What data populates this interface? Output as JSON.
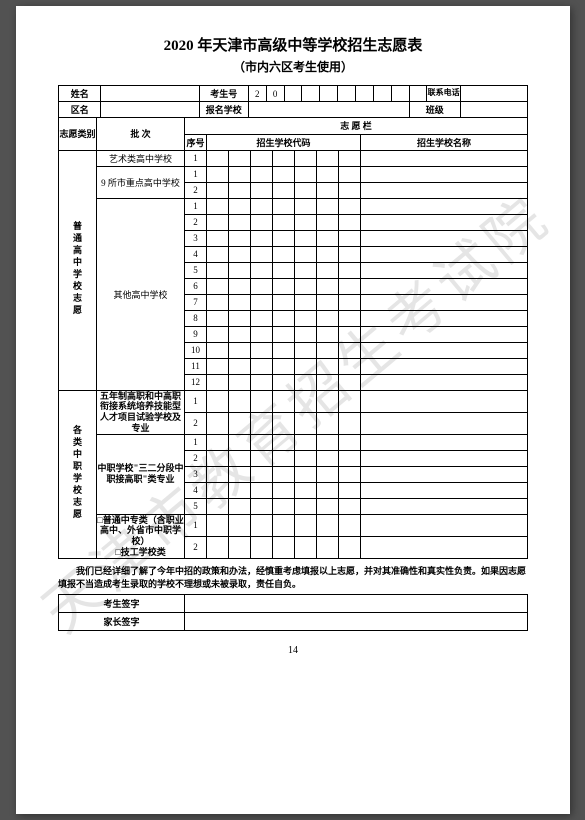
{
  "title": "2020 年天津市高级中等学校招生志愿表",
  "subtitle": "（市内六区考生使用）",
  "watermark": "天津市教育招生考试院",
  "header": {
    "name_label": "姓名",
    "examno_label": "考生号",
    "district_label": "区名",
    "school_label": "报名学校",
    "class_label": "班级",
    "phone_label": "联系电话",
    "examno_digits": [
      "2",
      "0",
      "",
      "",
      "",
      "",
      "",
      "",
      "",
      ""
    ]
  },
  "grid": {
    "category_label": "志愿类别",
    "batch_label": "批 次",
    "zhiyuan_label": "志 愿 栏",
    "seq_label": "序号",
    "code_label": "招生学校代码",
    "schoolname_label": "招生学校名称"
  },
  "categories": [
    {
      "name": "普通高中学校志愿",
      "batches": [
        {
          "label": "艺术类高中学校",
          "rows": [
            1
          ]
        },
        {
          "label": "9 所市重点高中学校",
          "rows": [
            1,
            2
          ]
        },
        {
          "label": "其他高中学校",
          "rows": [
            1,
            2,
            3,
            4,
            5,
            6,
            7,
            8,
            9,
            10,
            11,
            12
          ]
        }
      ]
    },
    {
      "name": "各类中职学校志愿",
      "batches": [
        {
          "label": "五年制高职和中高职衔接系统培养技能型人才项目试验学校及专业",
          "rows": [
            1,
            2
          ]
        },
        {
          "label": "中职学校\"三二分段中职接高职\"类专业",
          "rows": [
            1,
            2,
            3,
            4,
            5
          ]
        },
        {
          "label": "□普通中专类（含职业高中、外省市中职学校）\n□技工学校类",
          "rows": [
            1,
            2
          ]
        }
      ]
    }
  ],
  "declaration": "我们已经详细了解了今年中招的政策和办法，经慎重考虑填报以上志愿，并对其准确性和真实性负责。如果因志愿填报不当造成考生录取的学校不理想或未被录取，责任自负。",
  "sign": {
    "student": "考生签字",
    "parent": "家长签字"
  },
  "pagenum": "14"
}
